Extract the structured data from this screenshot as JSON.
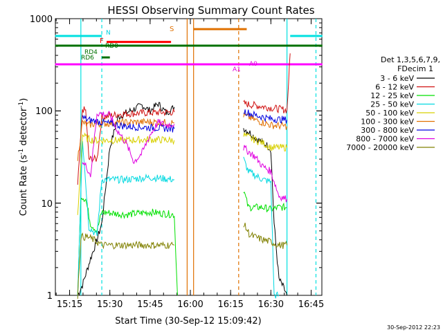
{
  "chart_data": {
    "type": "line",
    "title": "HESSI Observing Summary Count Rates",
    "xlabel": "Start Time (30-Sep-12 15:09:42)",
    "ylabel": "Count Rate (s",
    "ylabel_sup1": "-1",
    "ylabel_mid": " detector",
    "ylabel_sup2": "-1",
    "ylabel_end": ")",
    "yscale": "log",
    "ylim": [
      1,
      1000
    ],
    "xlim": [
      "15:09:42",
      "16:49:00"
    ],
    "x_ticks": [
      "15:15",
      "15:30",
      "15:45",
      "16:00",
      "16:15",
      "16:30",
      "16:45"
    ],
    "y_ticks": [
      "1",
      "10",
      "100",
      "1000"
    ],
    "footer_date": "30-Sep-2012 22:23",
    "legend": {
      "header1": "Det 1,3,5,6,7,9,",
      "header2": "FDecim 1",
      "entries": [
        {
          "label": "3 - 6 keV",
          "color": "#000000"
        },
        {
          "label": "6 - 12 keV",
          "color": "#d01010"
        },
        {
          "label": "12 - 25 keV",
          "color": "#00e000"
        },
        {
          "label": "25 - 50 keV",
          "color": "#00d8e0"
        },
        {
          "label": "50 - 100 keV",
          "color": "#d8d000"
        },
        {
          "label": "100 - 300 keV",
          "color": "#e07000"
        },
        {
          "label": "300 - 800 keV",
          "color": "#0000e0"
        },
        {
          "label": "800 - 7000 keV",
          "color": "#e000e0"
        },
        {
          "label": "7000 - 20000 keV",
          "color": "#808000"
        }
      ]
    },
    "flag_labels": {
      "N": "N",
      "F": "F",
      "RD0": "RD0",
      "RD4": "RD4",
      "RD6": "RD6",
      "S": "S",
      "A1": "A1",
      "A0": "A0"
    },
    "series": [
      {
        "name": "3 - 6 keV",
        "color": "#000000",
        "segments": [
          [
            [
              15.3,
              1
            ],
            [
              15.33,
              1.3
            ],
            [
              15.38,
              2.5
            ],
            [
              15.42,
              4
            ],
            [
              15.45,
              6
            ],
            [
              15.5,
              40
            ],
            [
              15.55,
              85
            ],
            [
              15.6,
              95
            ],
            [
              15.7,
              115
            ],
            [
              15.75,
              100
            ],
            [
              15.8,
              120
            ],
            [
              15.85,
              95
            ],
            [
              15.9,
              110
            ]
          ],
          [
            [
              16.33,
              65
            ],
            [
              16.37,
              58
            ],
            [
              16.4,
              52
            ],
            [
              16.45,
              45
            ],
            [
              16.48,
              42
            ],
            [
              16.5,
              38
            ],
            [
              16.52,
              6
            ],
            [
              16.55,
              1.5
            ],
            [
              16.58,
              1.2
            ],
            [
              16.6,
              1
            ]
          ]
        ]
      },
      {
        "name": "6 - 12 keV",
        "color": "#d01010",
        "segments": [
          [
            [
              15.3,
              15
            ],
            [
              15.33,
              105
            ],
            [
              15.35,
              100
            ],
            [
              15.37,
              30
            ],
            [
              15.42,
              30
            ],
            [
              15.45,
              85
            ],
            [
              15.55,
              92
            ],
            [
              15.7,
              95
            ],
            [
              15.9,
              97
            ]
          ],
          [
            [
              16.33,
              120
            ],
            [
              16.4,
              115
            ],
            [
              16.5,
              108
            ],
            [
              16.6,
              102
            ],
            [
              16.62,
              420
            ]
          ]
        ]
      },
      {
        "name": "12 - 25 keV",
        "color": "#00e000",
        "segments": [
          [
            [
              15.3,
              1
            ],
            [
              15.32,
              12
            ],
            [
              15.35,
              11
            ],
            [
              15.38,
              6
            ],
            [
              15.42,
              5
            ],
            [
              15.45,
              8
            ],
            [
              15.6,
              7.5
            ],
            [
              15.75,
              8
            ],
            [
              15.9,
              7.5
            ],
            [
              15.92,
              1
            ]
          ],
          [
            [
              16.33,
              14
            ],
            [
              16.36,
              9
            ],
            [
              16.45,
              9
            ],
            [
              16.5,
              8.5
            ],
            [
              16.55,
              9
            ],
            [
              16.6,
              9
            ]
          ]
        ]
      },
      {
        "name": "25 - 50 keV",
        "color": "#00d8e0",
        "segments": [
          [
            [
              15.3,
              1
            ],
            [
              15.33,
              50
            ],
            [
              15.37,
              5.5
            ],
            [
              15.42,
              4.5
            ],
            [
              15.45,
              18
            ],
            [
              15.6,
              18
            ],
            [
              15.75,
              19
            ],
            [
              15.9,
              18
            ]
          ],
          [
            [
              16.33,
              30
            ],
            [
              16.36,
              22
            ],
            [
              16.45,
              18
            ],
            [
              16.5,
              17
            ],
            [
              16.52,
              1
            ],
            [
              16.55,
              1
            ]
          ]
        ]
      },
      {
        "name": "50 - 100 keV",
        "color": "#d8d000",
        "segments": [
          [
            [
              15.3,
              7
            ],
            [
              15.33,
              55
            ],
            [
              15.36,
              50
            ],
            [
              15.4,
              48
            ],
            [
              15.6,
              48
            ],
            [
              15.75,
              49
            ],
            [
              15.9,
              48
            ]
          ],
          [
            [
              16.33,
              55
            ],
            [
              16.38,
              50
            ],
            [
              16.45,
              45
            ],
            [
              16.5,
              40
            ],
            [
              16.55,
              40
            ],
            [
              16.6,
              40
            ]
          ]
        ]
      },
      {
        "name": "100 - 300 keV",
        "color": "#e07000",
        "segments": [
          [
            [
              15.3,
              30
            ],
            [
              15.33,
              75
            ],
            [
              15.36,
              70
            ],
            [
              15.4,
              72
            ],
            [
              15.6,
              75
            ],
            [
              15.75,
              76
            ],
            [
              15.9,
              74
            ]
          ],
          [
            [
              16.33,
              90
            ],
            [
              16.4,
              80
            ],
            [
              16.5,
              70
            ],
            [
              16.6,
              68
            ]
          ]
        ]
      },
      {
        "name": "300 - 800 keV",
        "color": "#0000e0",
        "segments": [
          [
            [
              15.33,
              85
            ],
            [
              15.36,
              80
            ],
            [
              15.4,
              78
            ],
            [
              15.6,
              68
            ],
            [
              15.75,
              66
            ],
            [
              15.9,
              64
            ]
          ],
          [
            [
              16.33,
              100
            ],
            [
              16.4,
              90
            ],
            [
              16.5,
              82
            ],
            [
              16.6,
              80
            ]
          ]
        ]
      },
      {
        "name": "800 - 7000 keV",
        "color": "#e000e0",
        "segments": [
          [
            [
              15.33,
              28
            ],
            [
              15.36,
              24
            ],
            [
              15.38,
              20
            ],
            [
              15.42,
              95
            ],
            [
              15.5,
              90
            ],
            [
              15.55,
              60
            ],
            [
              15.6,
              45
            ],
            [
              15.65,
              28
            ],
            [
              15.7,
              35
            ],
            [
              15.75,
              55
            ],
            [
              15.8,
              75
            ],
            [
              15.85,
              70
            ],
            [
              15.9,
              72
            ]
          ],
          [
            [
              16.33,
              40
            ],
            [
              16.4,
              32
            ],
            [
              16.45,
              25
            ],
            [
              16.5,
              22
            ],
            [
              16.55,
              12
            ],
            [
              16.6,
              11
            ]
          ]
        ]
      },
      {
        "name": "7000 - 20000 keV",
        "color": "#808000",
        "segments": [
          [
            [
              15.3,
              1
            ],
            [
              15.32,
              4.3
            ],
            [
              15.36,
              4.3
            ],
            [
              15.4,
              4
            ],
            [
              15.45,
              3.5
            ],
            [
              15.6,
              3.5
            ],
            [
              15.75,
              3.5
            ],
            [
              15.9,
              3.5
            ]
          ],
          [
            [
              16.33,
              6
            ],
            [
              16.37,
              4.5
            ],
            [
              16.45,
              4
            ],
            [
              16.5,
              3.8
            ],
            [
              16.55,
              3.5
            ],
            [
              16.6,
              3.5
            ]
          ]
        ]
      }
    ],
    "flag_bars": [
      {
        "label": "N",
        "color": "#00e0e0",
        "x0": 15.16,
        "x1": 15.45,
        "y": 650
      },
      {
        "label": "N",
        "color": "#00e0e0",
        "x0": 16.62,
        "x1": 16.82,
        "y": 650
      },
      {
        "label": "F",
        "color": "#ff0000",
        "x0": 15.48,
        "x1": 15.88,
        "y": 560
      },
      {
        "label": "S",
        "color": "#e07000",
        "x0": 16.02,
        "x1": 16.35,
        "y": 770
      },
      {
        "label": "RD0",
        "color": "#007000",
        "x0": 15.16,
        "x1": 16.82,
        "y": 510
      },
      {
        "label": "RD4/RD6",
        "color": "#007000",
        "x0": 15.45,
        "x1": 15.5,
        "y": 380
      },
      {
        "label": "A0",
        "color": "#ff00ff",
        "x0": 15.16,
        "x1": 16.82,
        "y": 320
      }
    ],
    "vlines": [
      {
        "x": 15.45,
        "color": "#00e0e0",
        "dashed": true
      },
      {
        "x": 16.78,
        "color": "#00e0e0",
        "dashed": true
      },
      {
        "x": 15.98,
        "color": "#e07000",
        "dashed": false
      },
      {
        "x": 16.02,
        "color": "#e07000",
        "dashed": false
      },
      {
        "x": 16.3,
        "color": "#e07000",
        "dashed": true
      },
      {
        "x": 16.6,
        "color": "#00e0e0",
        "dashed": false
      },
      {
        "x": 15.32,
        "color": "#00e0e0",
        "dashed": false
      }
    ]
  }
}
